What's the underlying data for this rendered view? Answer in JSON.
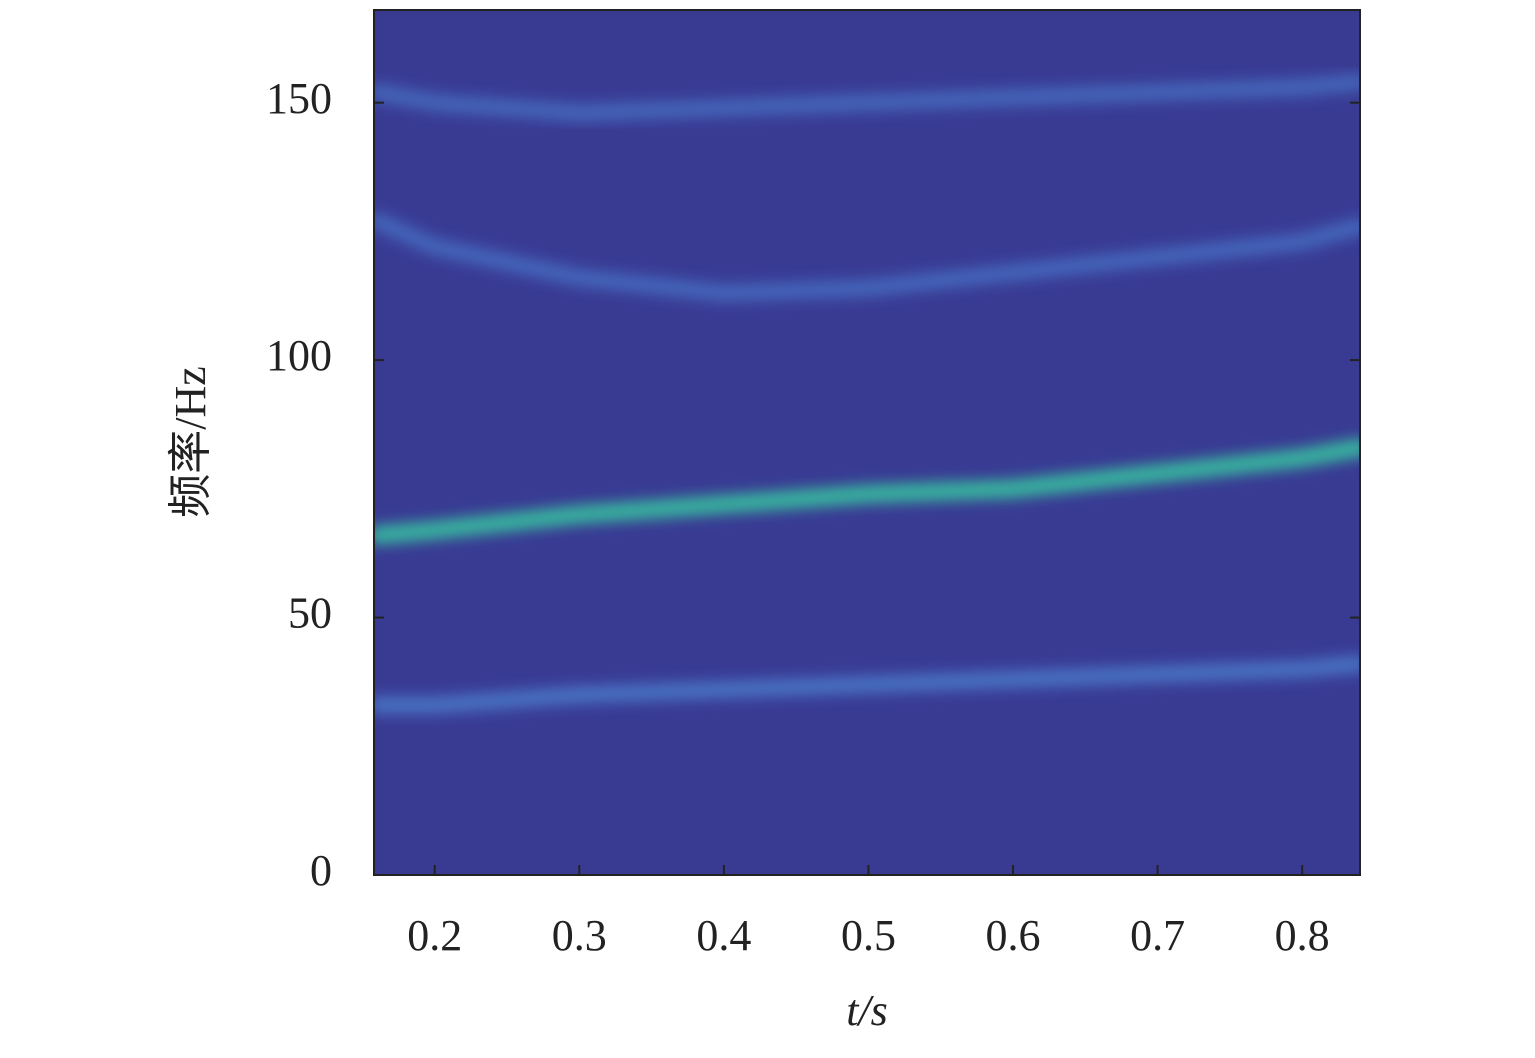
{
  "chart_data": {
    "type": "spectrogram",
    "x_label": "t/s",
    "y_label": "频率/Hz",
    "background": "#393b93",
    "x": [
      0.16,
      0.2,
      0.3,
      0.4,
      0.5,
      0.6,
      0.7,
      0.8,
      0.84
    ],
    "series": [
      {
        "color": "#37b89f",
        "values": [
          66,
          67,
          70,
          72,
          74,
          75,
          78,
          81,
          83
        ]
      },
      {
        "color": "#4a74c6",
        "values": [
          33,
          33,
          35,
          36,
          37,
          38,
          39,
          40,
          41
        ]
      },
      {
        "color": "#4567be",
        "values": [
          127,
          122,
          116,
          113,
          114,
          117,
          120,
          123,
          126
        ]
      },
      {
        "color": "#4468bc",
        "values": [
          152,
          150,
          148,
          149,
          150,
          151,
          152,
          153,
          154
        ]
      }
    ],
    "xlim": [
      0.158,
      0.84
    ],
    "ylim": [
      0,
      168
    ],
    "xticks": [
      0.2,
      0.3,
      0.4,
      0.5,
      0.6,
      0.7,
      0.8
    ],
    "yticks": [
      0,
      50,
      100,
      150
    ]
  }
}
